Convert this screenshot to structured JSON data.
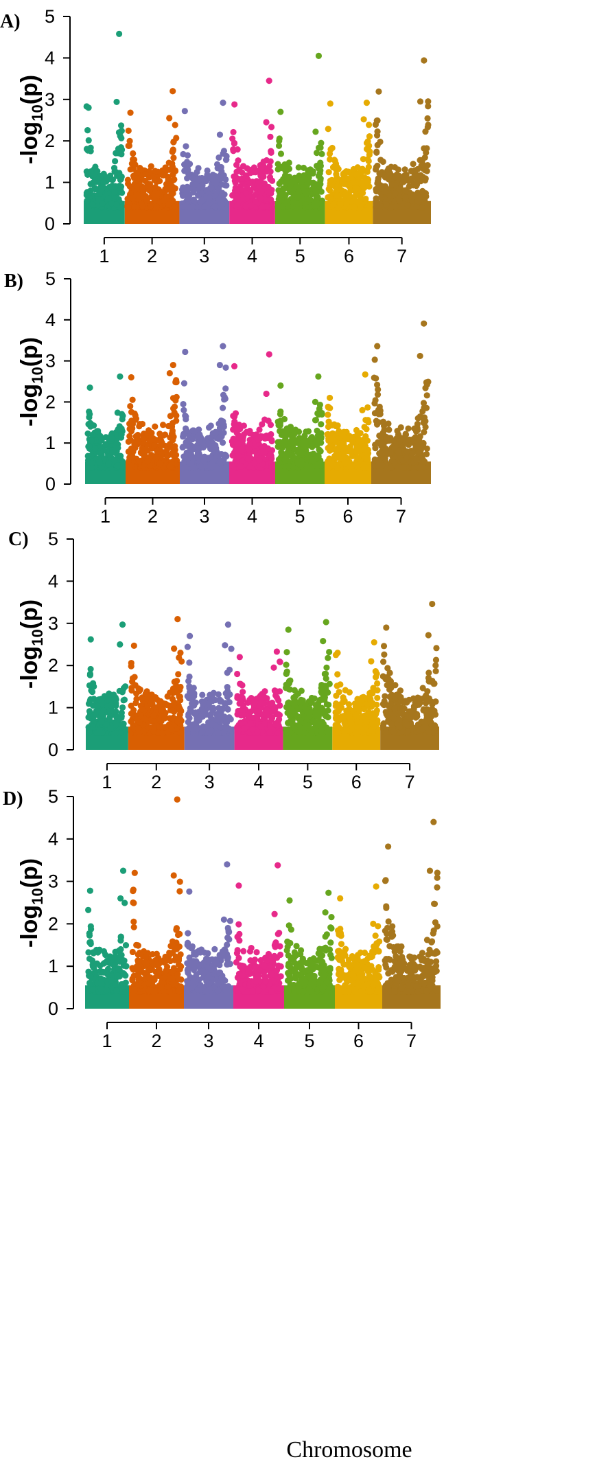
{
  "figure": {
    "xlabel": "Chromosome",
    "ylabel_prefix": "-log",
    "ylabel_sub": "10",
    "ylabel_suffix": "(p)"
  },
  "chart_data": [
    {
      "type": "scatter",
      "panel_label": "A)",
      "ylim": [
        0,
        5
      ],
      "yticks": [
        "0",
        "1",
        "2",
        "3",
        "4",
        "5"
      ],
      "chromosomes": [
        {
          "label": "1",
          "color": "#1b9e77",
          "peaks": [
            4.58,
            2.8,
            2.94
          ]
        },
        {
          "label": "2",
          "color": "#d95f02",
          "peaks": [
            3.2,
            2.68,
            2.55
          ]
        },
        {
          "label": "3",
          "color": "#7570b3",
          "peaks": [
            2.92,
            2.72,
            2.15
          ]
        },
        {
          "label": "4",
          "color": "#e7298a",
          "peaks": [
            3.45,
            2.88,
            2.45
          ]
        },
        {
          "label": "5",
          "color": "#66a61e",
          "peaks": [
            4.05,
            2.7,
            2.22
          ]
        },
        {
          "label": "6",
          "color": "#e6ab02",
          "peaks": [
            2.92,
            2.9,
            2.52
          ]
        },
        {
          "label": "7",
          "color": "#a6761d",
          "peaks": [
            3.94,
            3.19,
            2.95
          ]
        }
      ]
    },
    {
      "type": "scatter",
      "panel_label": "B)",
      "ylim": [
        0,
        5
      ],
      "yticks": [
        "0",
        "1",
        "2",
        "3",
        "4",
        "5"
      ],
      "chromosomes": [
        {
          "label": "1",
          "color": "#1b9e77",
          "peaks": [
            2.62,
            2.35,
            1.74
          ]
        },
        {
          "label": "2",
          "color": "#d95f02",
          "peaks": [
            2.9,
            2.6,
            2.7
          ]
        },
        {
          "label": "3",
          "color": "#7570b3",
          "peaks": [
            3.36,
            3.22,
            2.9
          ]
        },
        {
          "label": "4",
          "color": "#e7298a",
          "peaks": [
            3.16,
            2.87,
            2.2
          ]
        },
        {
          "label": "5",
          "color": "#66a61e",
          "peaks": [
            2.62,
            2.4,
            2.0
          ]
        },
        {
          "label": "6",
          "color": "#e6ab02",
          "peaks": [
            2.67,
            2.1,
            1.8
          ]
        },
        {
          "label": "7",
          "color": "#a6761d",
          "peaks": [
            3.91,
            3.36,
            3.12
          ]
        }
      ]
    },
    {
      "type": "scatter",
      "panel_label": "C)",
      "ylim": [
        0,
        5
      ],
      "yticks": [
        "0",
        "1",
        "2",
        "3",
        "4",
        "5"
      ],
      "chromosomes": [
        {
          "label": "1",
          "color": "#1b9e77",
          "peaks": [
            2.97,
            2.62,
            2.5
          ]
        },
        {
          "label": "2",
          "color": "#d95f02",
          "peaks": [
            3.1,
            2.47,
            2.4
          ]
        },
        {
          "label": "3",
          "color": "#7570b3",
          "peaks": [
            2.97,
            2.7,
            2.48
          ]
        },
        {
          "label": "4",
          "color": "#e7298a",
          "peaks": [
            2.33,
            2.2,
            1.95
          ]
        },
        {
          "label": "5",
          "color": "#66a61e",
          "peaks": [
            3.03,
            2.85,
            2.58
          ]
        },
        {
          "label": "6",
          "color": "#e6ab02",
          "peaks": [
            2.55,
            2.3,
            2.1
          ]
        },
        {
          "label": "7",
          "color": "#a6761d",
          "peaks": [
            3.46,
            2.9,
            2.72
          ]
        }
      ]
    },
    {
      "type": "scatter",
      "panel_label": "D)",
      "ylim": [
        0,
        5
      ],
      "yticks": [
        "0",
        "1",
        "2",
        "3",
        "4",
        "5"
      ],
      "chromosomes": [
        {
          "label": "1",
          "color": "#1b9e77",
          "peaks": [
            3.25,
            2.78,
            2.6
          ]
        },
        {
          "label": "2",
          "color": "#d95f02",
          "peaks": [
            4.93,
            3.2,
            3.14
          ]
        },
        {
          "label": "3",
          "color": "#7570b3",
          "peaks": [
            3.4,
            2.76,
            2.1
          ]
        },
        {
          "label": "4",
          "color": "#e7298a",
          "peaks": [
            3.38,
            2.9,
            2.23
          ]
        },
        {
          "label": "5",
          "color": "#66a61e",
          "peaks": [
            2.73,
            2.55,
            2.27
          ]
        },
        {
          "label": "6",
          "color": "#e6ab02",
          "peaks": [
            2.88,
            2.6,
            2.0
          ]
        },
        {
          "label": "7",
          "color": "#a6761d",
          "peaks": [
            4.4,
            3.82,
            3.25
          ]
        }
      ]
    }
  ]
}
